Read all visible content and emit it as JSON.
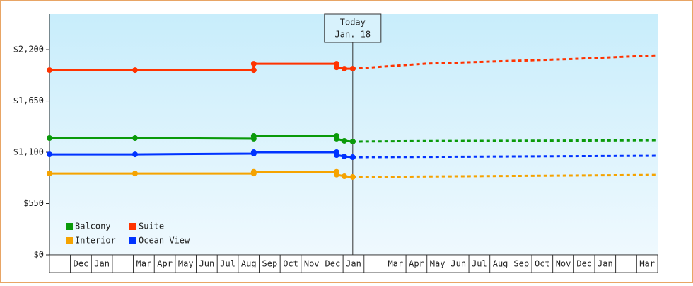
{
  "chart_data": {
    "type": "line",
    "categories": [
      null,
      "Dec",
      "Jan",
      null,
      "Mar",
      "Apr",
      "May",
      "Jun",
      "Jul",
      "Aug",
      "Sep",
      "Oct",
      "Nov",
      "Dec",
      "Jan",
      null,
      "Mar",
      "Apr",
      "May",
      "Jun",
      "Jul",
      "Aug",
      "Sep",
      "Oct",
      "Nov",
      "Dec",
      "Jan",
      null,
      "Mar"
    ],
    "xlim": [
      0,
      29
    ],
    "ylim": [
      0,
      2580
    ],
    "yticks": [
      {
        "value": 0,
        "label": "$0"
      },
      {
        "value": 550,
        "label": "$550"
      },
      {
        "value": 1100,
        "label": "$1,100"
      },
      {
        "value": 1650,
        "label": "$1,650"
      },
      {
        "value": 2200,
        "label": "$2,200"
      }
    ],
    "today": {
      "title": "Today",
      "date": "Jan. 18",
      "x": 14.46
    },
    "series": [
      {
        "name": "Balcony",
        "color": "#0a9a0a",
        "x": [
          0,
          4.08,
          9.74,
          9.74,
          13.69,
          13.69,
          14.06,
          14.46,
          18,
          25,
          29
        ],
        "values": [
          1252,
          1252,
          1245,
          1275,
          1275,
          1245,
          1222,
          1214,
          1220,
          1225,
          1229
        ]
      },
      {
        "name": "Suite",
        "color": "#ff3300",
        "x": [
          0,
          4.08,
          9.74,
          9.74,
          13.69,
          13.69,
          14.06,
          14.46,
          18,
          25,
          29
        ],
        "values": [
          1980,
          1980,
          1980,
          2048,
          2048,
          2010,
          1995,
          1995,
          2050,
          2100,
          2139
        ]
      },
      {
        "name": "Interior",
        "color": "#f5a300",
        "x": [
          0,
          4.08,
          9.74,
          9.74,
          13.69,
          13.69,
          14.06,
          14.46,
          18,
          25,
          29
        ],
        "values": [
          872,
          872,
          872,
          890,
          890,
          860,
          842,
          835,
          840,
          850,
          857
        ]
      },
      {
        "name": "Ocean View",
        "color": "#0033ff",
        "x": [
          0,
          4.08,
          9.74,
          9.74,
          13.69,
          13.69,
          14.06,
          14.46,
          18,
          25,
          29
        ],
        "values": [
          1077,
          1077,
          1085,
          1100,
          1100,
          1070,
          1054,
          1047,
          1050,
          1058,
          1062
        ]
      }
    ]
  }
}
